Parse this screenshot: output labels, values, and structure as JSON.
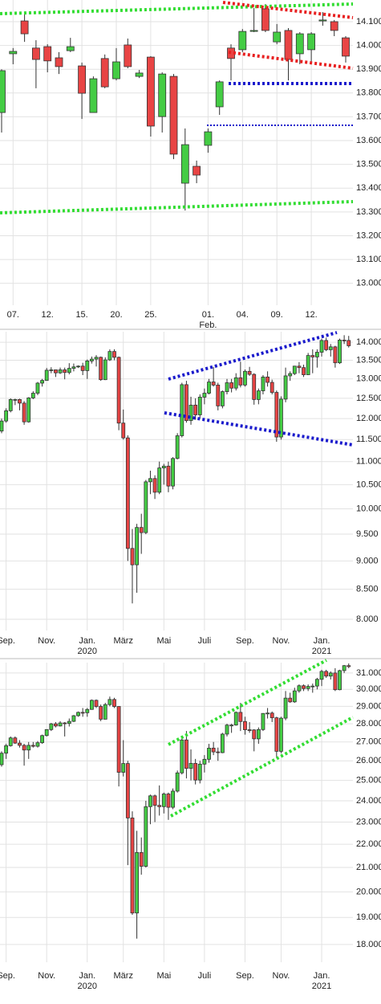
{
  "chart_data": [
    {
      "type": "candlestick",
      "grid": true,
      "log_scale": false,
      "up_color": "#44cc44",
      "down_color": "#e84444",
      "categories": [
        null,
        "07.",
        null,
        null,
        "12.",
        null,
        null,
        "15.",
        null,
        null,
        "20.",
        null,
        null,
        "25.",
        null,
        null,
        null,
        null,
        "01. Feb.",
        null,
        null,
        "04.",
        null,
        null,
        "09.",
        null,
        null,
        "12.",
        null,
        null,
        null
      ],
      "open": [
        13718,
        13965,
        14103,
        13989,
        13995,
        13948,
        13978,
        13914,
        13718,
        13945,
        13860,
        14002,
        13870,
        13951,
        13701,
        13870,
        13421,
        13492,
        13580,
        13742,
        13989,
        13982,
        14059,
        14154,
        14015,
        14063,
        13965,
        13982,
        14103,
        14100,
        14032
      ],
      "high": [
        13900,
        13989,
        14140,
        14022,
        14005,
        13972,
        14032,
        13928,
        13870,
        13962,
        13989,
        14029,
        13897,
        13955,
        13887,
        13880,
        13651,
        13516,
        13651,
        13853,
        14005,
        14069,
        14157,
        14174,
        14090,
        14073,
        14056,
        14056,
        14140,
        14107,
        14039
      ],
      "low": [
        13634,
        13921,
        14015,
        13820,
        13887,
        13880,
        13972,
        13691,
        13718,
        13820,
        13853,
        13904,
        13863,
        13617,
        13634,
        13522,
        13306,
        13421,
        13549,
        13708,
        13853,
        13972,
        14056,
        14056,
        14005,
        13853,
        13921,
        13921,
        14083,
        14039,
        13928
      ],
      "close": [
        13894,
        13975,
        14049,
        13941,
        13935,
        13911,
        13995,
        13799,
        13860,
        13826,
        13931,
        13911,
        13884,
        13661,
        13880,
        13543,
        13583,
        13455,
        13637,
        13847,
        13945,
        14059,
        14063,
        14063,
        14056,
        13941,
        14049,
        14049,
        14107,
        14063,
        13955
      ],
      "ylim": [
        12908,
        14191
      ],
      "yticks": [
        {
          "value": 13000,
          "label": "13.000"
        },
        {
          "value": 13100,
          "label": "13.100"
        },
        {
          "value": 13200,
          "label": "13.200"
        },
        {
          "value": 13300,
          "label": "13.300"
        },
        {
          "value": 13400,
          "label": "13.400"
        },
        {
          "value": 13500,
          "label": "13.500"
        },
        {
          "value": 13600,
          "label": "13.600"
        },
        {
          "value": 13700,
          "label": "13.700"
        },
        {
          "value": 13800,
          "label": "13.800"
        },
        {
          "value": 13900,
          "label": "13.900"
        },
        {
          "value": 14000,
          "label": "14.000"
        },
        {
          "value": 14100,
          "label": "14.100"
        }
      ]
    },
    {
      "type": "candlestick",
      "grid": true,
      "log_scale": true,
      "up_color": "#44cc44",
      "down_color": "#e84444",
      "categories": [
        null,
        "Sep.",
        null,
        null,
        null,
        null,
        null,
        null,
        null,
        null,
        "Nov.",
        null,
        null,
        null,
        null,
        null,
        null,
        null,
        null,
        "Jan. 2020",
        null,
        null,
        null,
        null,
        null,
        null,
        null,
        "März",
        null,
        null,
        null,
        null,
        null,
        null,
        null,
        null,
        "Mai",
        null,
        null,
        null,
        null,
        null,
        null,
        null,
        null,
        "Juli",
        null,
        null,
        null,
        null,
        null,
        null,
        null,
        null,
        "Sep.",
        null,
        null,
        null,
        null,
        null,
        null,
        null,
        "Nov.",
        null,
        null,
        null,
        null,
        null,
        null,
        null,
        null,
        "Jan. 2021",
        null,
        null,
        null,
        null,
        null,
        null
      ],
      "open": [
        11700,
        11940,
        12190,
        12470,
        12470,
        12380,
        11920,
        12510,
        12630,
        12890,
        12960,
        13230,
        13240,
        13160,
        13240,
        13170,
        13280,
        13320,
        13340,
        13220,
        13480,
        13530,
        13580,
        12980,
        13510,
        13740,
        13580,
        11890,
        11540,
        9230,
        8930,
        9630,
        9530,
        10560,
        10630,
        10340,
        10860,
        10900,
        10470,
        11070,
        11590,
        12850,
        11950,
        12330,
        12090,
        12530,
        12630,
        12920,
        12840,
        12310,
        12670,
        12900,
        12760,
        13030,
        12840,
        13200,
        13120,
        12470,
        12690,
        13050,
        12910,
        12650,
        11560,
        12480,
        13080,
        13140,
        13340,
        13300,
        13110,
        13630,
        13590,
        13720,
        14050,
        13790,
        13870,
        13430,
        14060,
        14050
      ],
      "high": [
        12000,
        12250,
        12500,
        12490,
        12490,
        12430,
        12530,
        12680,
        12920,
        13000,
        13290,
        13310,
        13250,
        13300,
        13300,
        13420,
        13410,
        13360,
        13430,
        13520,
        13600,
        13640,
        13600,
        13580,
        13800,
        13800,
        13600,
        12220,
        11600,
        9600,
        9700,
        9900,
        10600,
        10800,
        10700,
        11000,
        10950,
        11000,
        11100,
        11650,
        12900,
        12950,
        12540,
        12500,
        12600,
        12750,
        13000,
        13320,
        12900,
        12700,
        13000,
        13000,
        13150,
        13460,
        13250,
        13320,
        13150,
        12750,
        13100,
        13200,
        12980,
        12700,
        12550,
        13300,
        13200,
        13350,
        13450,
        13380,
        13700,
        13800,
        13800,
        14100,
        14130,
        13950,
        13900,
        14100,
        14200,
        14180
      ],
      "low": [
        11650,
        11900,
        12150,
        12330,
        12200,
        11850,
        11900,
        12480,
        12580,
        12800,
        12950,
        13150,
        13050,
        13130,
        12990,
        13120,
        13200,
        13290,
        13100,
        13000,
        13410,
        13330,
        12950,
        12970,
        13480,
        13500,
        11720,
        11500,
        9000,
        8260,
        8440,
        9130,
        9500,
        10300,
        10200,
        10300,
        10500,
        10340,
        10400,
        11050,
        11550,
        11900,
        11850,
        11970,
        12000,
        12350,
        12600,
        12800,
        12200,
        12250,
        12600,
        12650,
        12700,
        12780,
        12800,
        13080,
        12340,
        12350,
        12600,
        12800,
        12600,
        11450,
        11500,
        12400,
        12950,
        13100,
        13150,
        13050,
        13100,
        13150,
        13300,
        13600,
        13750,
        13600,
        13300,
        13400,
        13950,
        13850
      ],
      "close": [
        11940,
        12190,
        12470,
        12470,
        12380,
        11920,
        12510,
        12630,
        12890,
        12960,
        13230,
        13240,
        13160,
        13240,
        13170,
        13280,
        13320,
        13340,
        13220,
        13480,
        13530,
        13580,
        12980,
        13510,
        13740,
        13580,
        11890,
        11540,
        9230,
        8930,
        9630,
        9530,
        10560,
        10630,
        10340,
        10860,
        10900,
        10470,
        11070,
        11590,
        12850,
        11950,
        12330,
        12090,
        12530,
        12630,
        12920,
        12840,
        12310,
        12670,
        12900,
        12760,
        13030,
        12840,
        13200,
        13120,
        12470,
        12690,
        13050,
        12910,
        12650,
        11560,
        12480,
        13080,
        13140,
        13340,
        13300,
        13110,
        13630,
        13590,
        13720,
        14050,
        13790,
        13870,
        13430,
        14060,
        14050,
        13900
      ],
      "ylim": [
        7820,
        14300
      ],
      "yticks": [
        {
          "value": 8000,
          "label": "8.000"
        },
        {
          "value": 8500,
          "label": "8.500"
        },
        {
          "value": 9000,
          "label": "9.000"
        },
        {
          "value": 9500,
          "label": "9.500"
        },
        {
          "value": 10000,
          "label": "10.000"
        },
        {
          "value": 10500,
          "label": "10.500"
        },
        {
          "value": 11000,
          "label": "11.000"
        },
        {
          "value": 11500,
          "label": "11.500"
        },
        {
          "value": 12000,
          "label": "12.000"
        },
        {
          "value": 12500,
          "label": "12.500"
        },
        {
          "value": 13000,
          "label": "13.000"
        },
        {
          "value": 13500,
          "label": "13.500"
        },
        {
          "value": 14000,
          "label": "14.000"
        }
      ]
    },
    {
      "type": "candlestick",
      "grid": true,
      "log_scale": true,
      "up_color": "#44cc44",
      "down_color": "#e84444",
      "categories": [
        null,
        "Sep.",
        null,
        null,
        null,
        null,
        null,
        null,
        null,
        null,
        "Nov.",
        null,
        null,
        null,
        null,
        null,
        null,
        null,
        null,
        "Jan. 2020",
        null,
        null,
        null,
        null,
        null,
        null,
        null,
        "März",
        null,
        null,
        null,
        null,
        null,
        null,
        null,
        null,
        "Mai",
        null,
        null,
        null,
        null,
        null,
        null,
        null,
        null,
        "Juli",
        null,
        null,
        null,
        null,
        null,
        null,
        null,
        null,
        "Sep.",
        null,
        null,
        null,
        null,
        null,
        null,
        null,
        "Nov.",
        null,
        null,
        null,
        null,
        null,
        null,
        null,
        null,
        "Jan. 2021",
        null,
        null,
        null,
        null,
        null,
        null
      ],
      "open": [
        25800,
        26400,
        26800,
        27220,
        26940,
        26820,
        26570,
        26820,
        26770,
        26960,
        27350,
        27680,
        28000,
        27880,
        28050,
        28020,
        28140,
        28460,
        28650,
        28630,
        28820,
        29350,
        28990,
        28260,
        29100,
        29400,
        28990,
        25410,
        25860,
        23190,
        19170,
        21640,
        21050,
        23720,
        24240,
        23780,
        23720,
        24330,
        23690,
        24470,
        25380,
        27110,
        25610,
        25870,
        25020,
        25830,
        26080,
        26670,
        26470,
        26430,
        27430,
        27930,
        27930,
        28650,
        28130,
        27670,
        27660,
        27170,
        27680,
        28590,
        28610,
        28340,
        26500,
        28320,
        29480,
        29260,
        29910,
        30220,
        30050,
        30180,
        30200,
        30610,
        31100,
        30810,
        31000,
        29980,
        31150,
        31460
      ],
      "high": [
        26500,
        26900,
        27300,
        27300,
        27100,
        26900,
        27000,
        27000,
        27050,
        27400,
        27700,
        28050,
        28100,
        28150,
        28100,
        28300,
        28500,
        28700,
        28900,
        28900,
        29400,
        29400,
        29100,
        29200,
        29570,
        29500,
        29000,
        27100,
        26000,
        23500,
        22600,
        22300,
        24000,
        24300,
        24300,
        24750,
        24400,
        24400,
        24600,
        25500,
        27300,
        27600,
        26600,
        26100,
        26000,
        26300,
        26900,
        27000,
        26700,
        27500,
        28000,
        28000,
        28700,
        29200,
        28400,
        28100,
        27700,
        27800,
        28600,
        28900,
        28700,
        28400,
        28400,
        29900,
        29800,
        30100,
        30300,
        30300,
        30300,
        30350,
        30700,
        31200,
        31200,
        31100,
        31300,
        31200,
        31500,
        31600
      ],
      "low": [
        25700,
        26100,
        26750,
        26900,
        26700,
        25750,
        26100,
        26700,
        26700,
        26900,
        27300,
        27600,
        27800,
        27850,
        27300,
        27850,
        28100,
        28400,
        28400,
        28400,
        28800,
        28900,
        28150,
        28250,
        29000,
        28900,
        24700,
        25200,
        21100,
        19100,
        18210,
        20700,
        21000,
        22900,
        23000,
        23300,
        23400,
        23100,
        23600,
        24400,
        25300,
        25100,
        25000,
        24800,
        24850,
        25400,
        25900,
        26300,
        26000,
        26400,
        27300,
        27500,
        27900,
        27600,
        27400,
        27500,
        26500,
        26900,
        27600,
        28300,
        28100,
        26150,
        26400,
        28200,
        29200,
        29200,
        29800,
        29900,
        29900,
        29800,
        30000,
        30200,
        30700,
        30600,
        29900,
        29950,
        31000,
        31300
      ],
      "close": [
        26400,
        26800,
        27220,
        26940,
        26820,
        26570,
        26820,
        26770,
        26960,
        27350,
        27680,
        28000,
        27880,
        28050,
        28020,
        28140,
        28460,
        28650,
        28630,
        28820,
        29350,
        28990,
        28260,
        29100,
        29400,
        28990,
        25410,
        25860,
        23190,
        19170,
        21640,
        21050,
        23720,
        24240,
        23780,
        23720,
        24330,
        23690,
        24470,
        25380,
        27110,
        25610,
        25870,
        25020,
        25830,
        26080,
        26670,
        26470,
        26430,
        27430,
        27930,
        27930,
        28650,
        28130,
        27670,
        27660,
        27170,
        27680,
        28590,
        28610,
        28340,
        26500,
        28320,
        29480,
        29260,
        29910,
        30220,
        30050,
        30180,
        30200,
        30610,
        31100,
        30810,
        31000,
        29980,
        31150,
        31460,
        31400
      ],
      "ylim": [
        17370,
        31650
      ],
      "yticks": [
        {
          "value": 18000,
          "label": "18.000"
        },
        {
          "value": 19000,
          "label": "19.000"
        },
        {
          "value": 20000,
          "label": "20.000"
        },
        {
          "value": 21000,
          "label": "21.000"
        },
        {
          "value": 22000,
          "label": "22.000"
        },
        {
          "value": 23000,
          "label": "23.000"
        },
        {
          "value": 24000,
          "label": "24.000"
        },
        {
          "value": 25000,
          "label": "25.000"
        },
        {
          "value": 26000,
          "label": "26.000"
        },
        {
          "value": 27000,
          "label": "27.000"
        },
        {
          "value": 28000,
          "label": "28.000"
        },
        {
          "value": 29000,
          "label": "29.000"
        },
        {
          "value": 30000,
          "label": "30.000"
        },
        {
          "value": 31000,
          "label": "31.000"
        }
      ]
    }
  ]
}
